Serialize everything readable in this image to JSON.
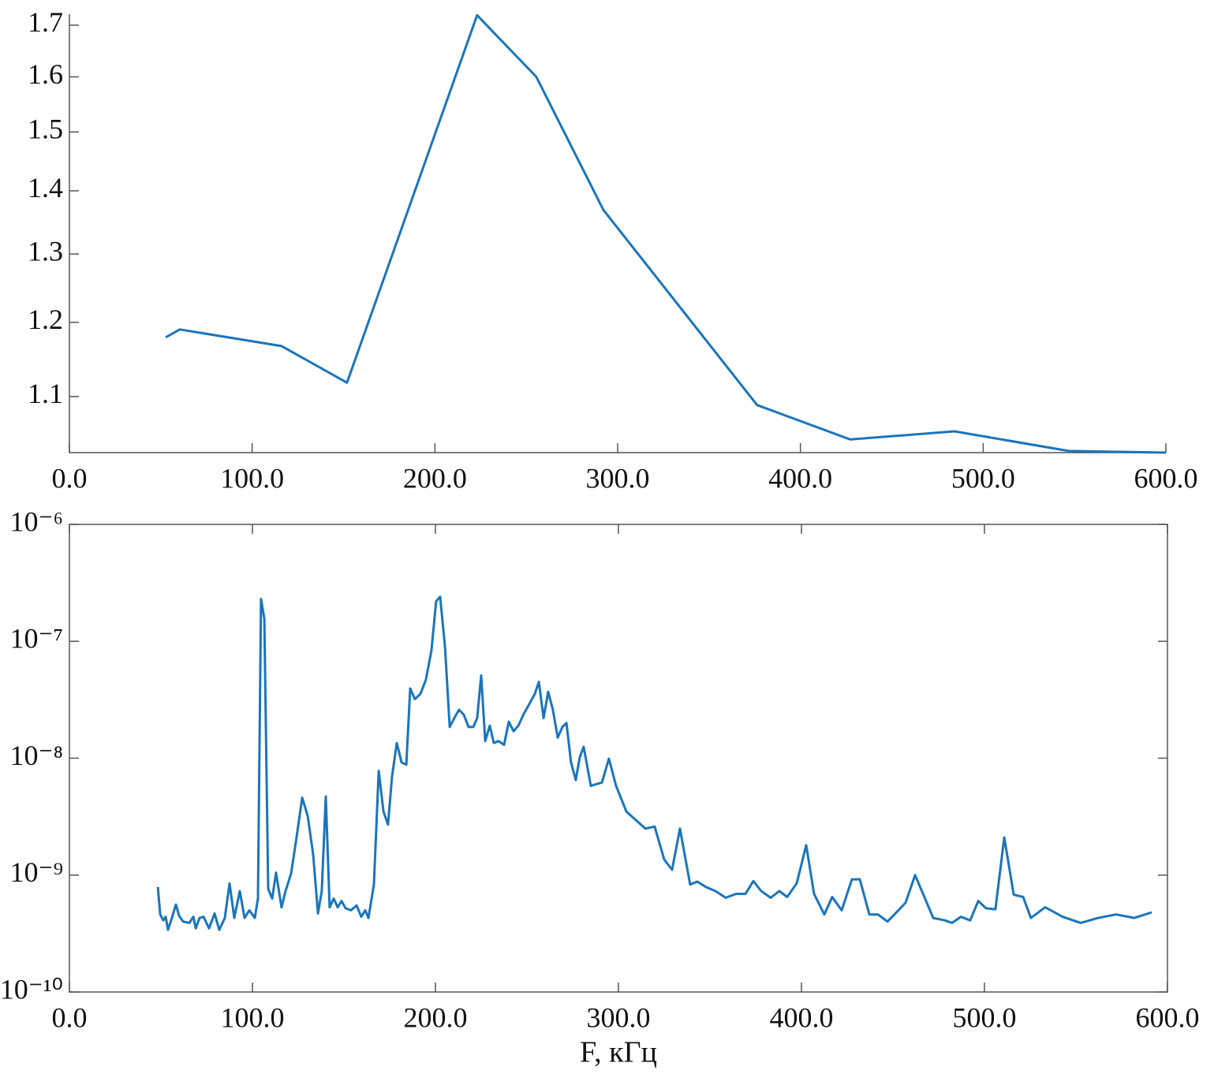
{
  "chart_data": [
    {
      "type": "line",
      "yscale": "log",
      "color": "#1a75bb",
      "x": [
        52.7,
        60.4,
        116.1,
        151.9,
        223.1,
        255.5,
        292.2,
        376.3,
        427.3,
        484.3,
        546.8,
        600
      ],
      "values": [
        1.179,
        1.19,
        1.167,
        1.118,
        1.72,
        1.6,
        1.369,
        1.089,
        1.046,
        1.056,
        1.032,
        1.03
      ],
      "xlim": [
        0,
        600
      ],
      "ylim": [
        1.03,
        1.722
      ],
      "xticks": [
        {
          "value": 0,
          "label": "0.0"
        },
        {
          "value": 100,
          "label": "100.0"
        },
        {
          "value": 200,
          "label": "200.0"
        },
        {
          "value": 300,
          "label": "300.0"
        },
        {
          "value": 400,
          "label": "400.0"
        },
        {
          "value": 500,
          "label": "500.0"
        },
        {
          "value": 600,
          "label": "600.0"
        }
      ],
      "yticks": [
        1.1,
        1.2,
        1.3,
        1.4,
        1.5,
        1.6,
        1.7
      ]
    },
    {
      "type": "line",
      "yscale": "log",
      "color": "#1a75bb",
      "xlabel": "F, кГц",
      "x": [
        48.3,
        49.6,
        51.3,
        52.6,
        53.9,
        56.0,
        58.2,
        59.9,
        62.1,
        65.5,
        67.7,
        69.0,
        71.1,
        73.3,
        76.3,
        79.3,
        81.9,
        84.9,
        87.5,
        90.1,
        93.1,
        95.7,
        98.3,
        101.3,
        103.0,
        104.7,
        106.5,
        108.6,
        110.8,
        112.9,
        115.9,
        118.1,
        121.1,
        123.7,
        127.2,
        130.2,
        133.2,
        135.8,
        137.9,
        140.1,
        142.2,
        144.4,
        146.6,
        148.7,
        150.9,
        153.9,
        156.9,
        159.5,
        161.6,
        163.4,
        166.4,
        169.0,
        171.6,
        174.1,
        176.3,
        178.9,
        181.5,
        184.1,
        186.2,
        188.8,
        191.8,
        194.8,
        197.8,
        200.4,
        202.6,
        205.2,
        207.8,
        210.3,
        212.9,
        215.5,
        218.1,
        220.7,
        222.8,
        225.0,
        227.2,
        229.7,
        231.9,
        234.5,
        237.5,
        240.1,
        242.7,
        245.3,
        248.3,
        251.3,
        254.3,
        256.5,
        259.1,
        261.6,
        264.2,
        266.8,
        269.4,
        271.6,
        274.1,
        276.7,
        278.9,
        281.0,
        284.9,
        291.0,
        294.8,
        298.7,
        304.3,
        314.7,
        319.8,
        325.0,
        329.3,
        333.6,
        339.2,
        343.1,
        347.8,
        353.0,
        358.6,
        364.2,
        369.4,
        373.7,
        378.0,
        383.2,
        387.9,
        392.2,
        397.4,
        402.6,
        406.9,
        412.5,
        416.8,
        422.0,
        427.6,
        431.9,
        437.1,
        441.8,
        447.0,
        451.3,
        456.9,
        462.1,
        468.5,
        472.0,
        478.4,
        482.3,
        487.1,
        492.2,
        496.6,
        500.9,
        506.0,
        510.8,
        516.0,
        521.1,
        525.4,
        533.2,
        542.7,
        552.6,
        562.1,
        572.0,
        581.9,
        591.4
      ],
      "values": [
        7.9e-10,
        4.6e-10,
        4.1e-10,
        4.4e-10,
        3.4e-10,
        4.3e-10,
        5.6e-10,
        4.5e-10,
        4e-10,
        3.9e-10,
        4.4e-10,
        3.5e-10,
        4.3e-10,
        4.4e-10,
        3.5e-10,
        4.7e-10,
        3.4e-10,
        4.3e-10,
        8.5e-10,
        4.3e-10,
        7.3e-10,
        4.3e-10,
        5e-10,
        4.3e-10,
        6.3e-10,
        2.3e-07,
        1.55e-07,
        7.6e-10,
        6.3e-10,
        1.05e-09,
        5.3e-10,
        7.3e-10,
        1.03e-09,
        1.9e-09,
        4.6e-09,
        3.2e-09,
        1.5e-09,
        4.7e-10,
        7.3e-10,
        4.7e-09,
        5.3e-10,
        6.3e-10,
        5.3e-10,
        6e-10,
        5.2e-10,
        5e-10,
        5.5e-10,
        4.4e-10,
        5e-10,
        4.3e-10,
        8.3e-10,
        7.8e-09,
        3.5e-09,
        2.7e-09,
        7e-09,
        1.35e-08,
        9.2e-09,
        8.8e-09,
        3.95e-08,
        3.2e-08,
        3.55e-08,
        4.7e-08,
        8.3e-08,
        2.2e-07,
        2.4e-07,
        9e-08,
        1.85e-08,
        2.2e-08,
        2.6e-08,
        2.35e-08,
        1.85e-08,
        1.85e-08,
        2.2e-08,
        5.1e-08,
        1.4e-08,
        1.9e-08,
        1.35e-08,
        1.4e-08,
        1.3e-08,
        2.05e-08,
        1.7e-08,
        1.9e-08,
        2.4e-08,
        2.9e-08,
        3.55e-08,
        4.5e-08,
        2.2e-08,
        3.7e-08,
        2.6e-08,
        1.5e-08,
        1.85e-08,
        2e-08,
        9.2e-09,
        6.5e-09,
        1.02e-08,
        1.25e-08,
        5.8e-09,
        6.2e-09,
        9.9e-09,
        5.8e-09,
        3.5e-09,
        2.5e-09,
        2.6e-09,
        1.36e-09,
        1.11e-09,
        2.5e-09,
        8.3e-10,
        8.8e-10,
        7.9e-10,
        7.3e-10,
        6.4e-10,
        6.9e-10,
        6.9e-10,
        8.9e-10,
        7.3e-10,
        6.4e-10,
        7.3e-10,
        6.5e-10,
        8.5e-10,
        1.8e-09,
        6.9e-10,
        4.6e-10,
        6.5e-10,
        5e-10,
        9.2e-10,
        9.2e-10,
        4.6e-10,
        4.6e-10,
        4e-10,
        4.7e-10,
        5.8e-10,
        1e-09,
        5.8e-10,
        4.3e-10,
        4.1e-10,
        3.9e-10,
        4.4e-10,
        4.1e-10,
        6e-10,
        5.2e-10,
        5.1e-10,
        2.1e-09,
        6.8e-10,
        6.5e-10,
        4.3e-10,
        5.3e-10,
        4.4e-10,
        3.9e-10,
        4.3e-10,
        4.6e-10,
        4.3e-10,
        4.8e-10
      ],
      "xlim": [
        0,
        600
      ],
      "ylim": [
        1e-10,
        1e-06
      ],
      "xticks": [
        {
          "value": 0,
          "label": "0.0"
        },
        {
          "value": 100,
          "label": "100.0"
        },
        {
          "value": 200,
          "label": "200.0"
        },
        {
          "value": 300,
          "label": "300.0"
        },
        {
          "value": 400,
          "label": "400.0"
        },
        {
          "value": 500,
          "label": "500.0"
        },
        {
          "value": 600,
          "label": "600.0"
        }
      ],
      "yticks": [
        {
          "value": 1e-10,
          "label": "10⁻¹⁰"
        },
        {
          "value": 1e-09,
          "label": "10⁻⁹"
        },
        {
          "value": 1e-08,
          "label": "10⁻⁸"
        },
        {
          "value": 1e-07,
          "label": "10⁻⁷"
        },
        {
          "value": 1e-06,
          "label": "10⁻⁶"
        }
      ]
    }
  ]
}
